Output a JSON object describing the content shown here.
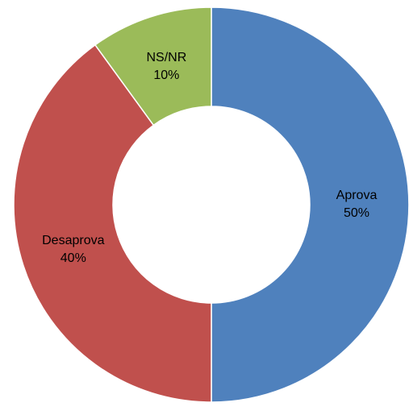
{
  "chart_data": {
    "type": "donut",
    "categories": [
      "Aprova",
      "Desaprova",
      "NS/NR"
    ],
    "values": [
      50,
      40,
      10
    ],
    "value_labels": [
      "50%",
      "40%",
      "10%"
    ],
    "colors": [
      "#4f81bd",
      "#c0504d",
      "#9bbb59"
    ]
  }
}
